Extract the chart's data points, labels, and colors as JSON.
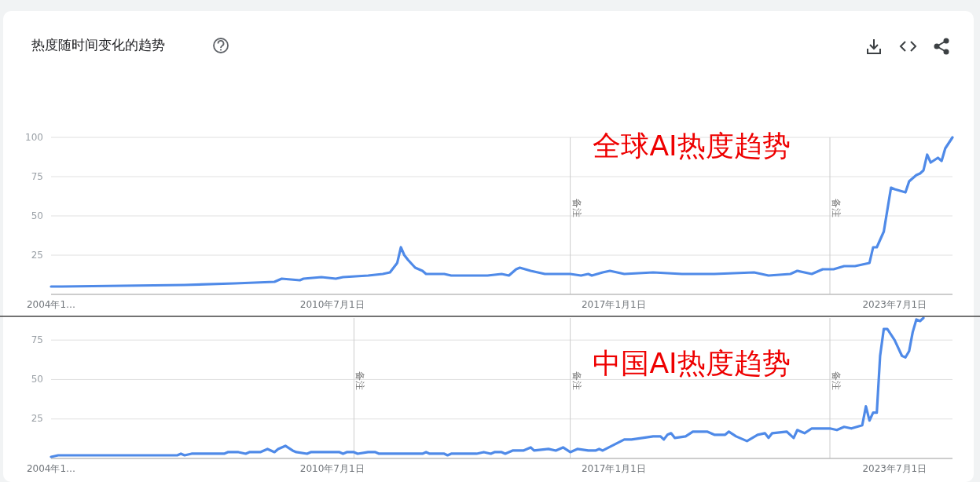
{
  "chart_data": [
    {
      "type": "line",
      "title": "热度随时间变化的趋势",
      "annotations": [
        "全球AI热度趋势"
      ],
      "series": [
        {
          "color": "#4f8ae8",
          "x": [
            "2004-01",
            "2004-04",
            "2007-02",
            "2008-04",
            "2009-03",
            "2009-05",
            "2009-10",
            "2009-11",
            "2010-04",
            "2010-08",
            "2010-10",
            "2011-05",
            "2011-09",
            "2011-11",
            "2012-01",
            "2012-02",
            "2012-03",
            "2012-04",
            "2012-06",
            "2012-08",
            "2012-09",
            "2013-02",
            "2013-04",
            "2013-09",
            "2014-02",
            "2014-06",
            "2014-08",
            "2014-10",
            "2014-11",
            "2015-02",
            "2015-06",
            "2016-01",
            "2016-04",
            "2016-06",
            "2016-07",
            "2016-10",
            "2016-12",
            "2017-04",
            "2017-12",
            "2018-08",
            "2019-05",
            "2020-04",
            "2020-08",
            "2021-02",
            "2021-04",
            "2021-08",
            "2021-11",
            "2022-02",
            "2022-05",
            "2022-08",
            "2022-12",
            "2023-01",
            "2023-02",
            "2023-04",
            "2023-06",
            "2023-07",
            "2023-10",
            "2023-11",
            "2024-01",
            "2024-02",
            "2024-03",
            "2024-04",
            "2024-05",
            "2024-07",
            "2024-08",
            "2024-09",
            "2024-11"
          ],
          "values": [
            5,
            5,
            6,
            7,
            8,
            10,
            9,
            10,
            11,
            10,
            11,
            12,
            13,
            14,
            20,
            30,
            25,
            22,
            17,
            15,
            13,
            13,
            12,
            12,
            12,
            13,
            12,
            16,
            17,
            15,
            13,
            13,
            12,
            13,
            12,
            14,
            15,
            13,
            14,
            13,
            13,
            14,
            12,
            13,
            15,
            13,
            16,
            16,
            18,
            18,
            20,
            30,
            30,
            40,
            68,
            67,
            65,
            72,
            76,
            77,
            79,
            89,
            84,
            87,
            85,
            93,
            100
          ]
        }
      ],
      "xlim": [
        "2004-01",
        "2024-11"
      ],
      "xticks": [
        {
          "value": "2004-01-01",
          "label": "2004年1…"
        },
        {
          "value": "2010-07-01",
          "label": "2010年7月1日"
        },
        {
          "value": "2017-01-01",
          "label": "2017年1月1日"
        },
        {
          "value": "2023-07-01",
          "label": "2023年7月1日"
        }
      ],
      "ylim": [
        0,
        100
      ],
      "yticks": [
        25,
        50,
        75,
        100
      ],
      "grid": "y",
      "ref_lines": [
        {
          "axis": "x",
          "value": "2016-01",
          "label": "备注"
        },
        {
          "axis": "x",
          "value": "2022-01",
          "label": "备注"
        }
      ]
    },
    {
      "type": "line",
      "annotations": [
        "中国AI热度趋势"
      ],
      "series": [
        {
          "color": "#4f8ae8",
          "x": [
            "2004-01",
            "2004-03",
            "2006-12",
            "2007-01",
            "2007-02",
            "2007-04",
            "2008-01",
            "2008-02",
            "2008-05",
            "2008-07",
            "2008-08",
            "2008-11",
            "2009-01",
            "2009-03",
            "2009-04",
            "2009-06",
            "2009-08",
            "2009-09",
            "2009-12",
            "2010-01",
            "2010-09",
            "2010-10",
            "2010-11",
            "2011-01",
            "2011-02",
            "2011-05",
            "2011-07",
            "2011-08",
            "2012-08",
            "2012-09",
            "2012-10",
            "2013-02",
            "2013-03",
            "2013-04",
            "2013-11",
            "2014-01",
            "2014-03",
            "2014-04",
            "2014-06",
            "2014-07",
            "2014-09",
            "2014-12",
            "2015-02",
            "2015-03",
            "2015-07",
            "2015-09",
            "2015-11",
            "2016-01",
            "2016-03",
            "2016-06",
            "2016-08",
            "2016-09",
            "2016-10",
            "2017-04",
            "2017-06",
            "2017-09",
            "2017-12",
            "2018-02",
            "2018-03",
            "2018-04",
            "2018-05",
            "2018-06",
            "2018-09",
            "2018-11",
            "2019-03",
            "2019-05",
            "2019-08",
            "2019-09",
            "2019-11",
            "2020-02",
            "2020-05",
            "2020-07",
            "2020-08",
            "2020-09",
            "2021-01",
            "2021-03",
            "2021-04",
            "2021-06",
            "2021-08",
            "2022-01",
            "2022-03",
            "2022-05",
            "2022-07",
            "2022-10",
            "2022-11",
            "2022-12",
            "2023-01",
            "2023-02",
            "2023-03",
            "2023-04",
            "2023-05",
            "2023-07",
            "2023-09",
            "2023-10",
            "2023-11",
            "2023-12",
            "2024-01",
            "2024-02",
            "2024-03"
          ],
          "values": [
            1,
            2,
            2,
            3,
            2,
            3,
            3,
            4,
            4,
            3,
            4,
            4,
            6,
            4,
            6,
            8,
            5,
            4,
            3,
            4,
            4,
            3,
            4,
            4,
            3,
            4,
            4,
            3,
            3,
            4,
            3,
            3,
            2,
            3,
            3,
            4,
            3,
            4,
            4,
            3,
            5,
            5,
            7,
            5,
            6,
            5,
            7,
            4,
            6,
            5,
            5,
            6,
            5,
            12,
            12,
            13,
            14,
            14,
            12,
            15,
            16,
            13,
            14,
            17,
            17,
            15,
            15,
            17,
            14,
            11,
            15,
            16,
            13,
            16,
            17,
            13,
            18,
            16,
            19,
            19,
            18,
            20,
            19,
            21,
            33,
            24,
            29,
            29,
            65,
            82,
            82,
            75,
            65,
            64,
            68,
            80,
            88,
            87,
            89
          ]
        }
      ],
      "xlim": [
        "2004-01",
        "2024-11"
      ],
      "xticks": [
        {
          "value": "2004-01-01",
          "label": "2004年1…"
        },
        {
          "value": "2010-07-01",
          "label": "2010年7月1日"
        },
        {
          "value": "2017-01-01",
          "label": "2017年1月1日"
        },
        {
          "value": "2023-07-01",
          "label": "2023年7月1日"
        }
      ],
      "ylim": [
        0,
        89
      ],
      "yticks": [
        25,
        50,
        75
      ],
      "grid": "y",
      "ref_lines": [
        {
          "axis": "x",
          "value": "2011-01",
          "label": "备注"
        },
        {
          "axis": "x",
          "value": "2016-01",
          "label": "备注"
        },
        {
          "axis": "x",
          "value": "2022-01",
          "label": "备注"
        }
      ]
    }
  ]
}
